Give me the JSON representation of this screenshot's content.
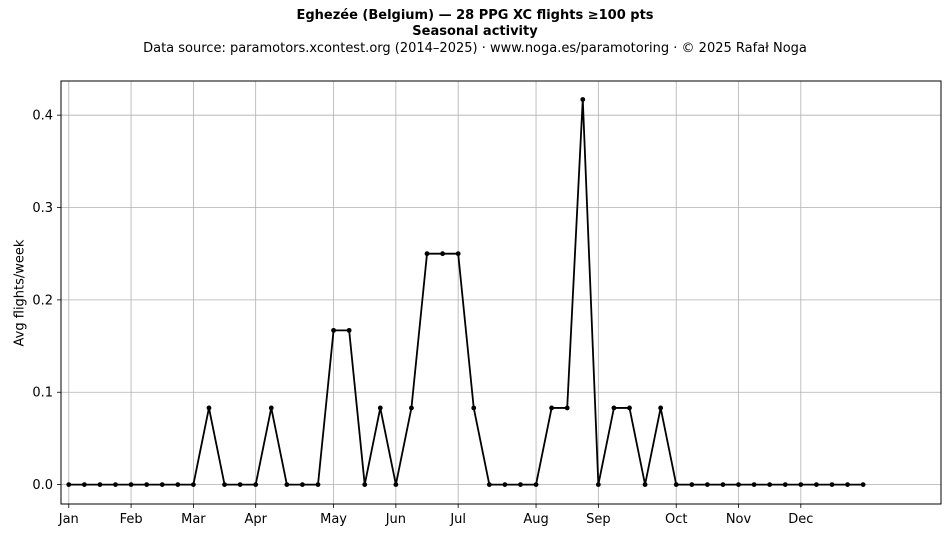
{
  "chart_data": {
    "type": "line",
    "title": "Eghezée (Belgium)  —  28 PPG XC flights ≥100 pts",
    "subtitle": "Seasonal activity",
    "source_note": "Data source: paramotors.xcontest.org (2014–2025)  ·  www.noga.es/paramotoring  ·  © 2025 Rafał Noga",
    "xlabel": "",
    "ylabel": "Avg flights/week",
    "xlim": [
      -0.5,
      56.0
    ],
    "ylim": [
      -0.021,
      0.437
    ],
    "grid": true,
    "month_ticks": [
      {
        "label": "Jan",
        "week": 0
      },
      {
        "label": "Feb",
        "week": 4
      },
      {
        "label": "Mar",
        "week": 8
      },
      {
        "label": "Apr",
        "week": 12
      },
      {
        "label": "May",
        "week": 17
      },
      {
        "label": "Jun",
        "week": 21
      },
      {
        "label": "Jul",
        "week": 25
      },
      {
        "label": "Aug",
        "week": 30
      },
      {
        "label": "Sep",
        "week": 34
      },
      {
        "label": "Oct",
        "week": 39
      },
      {
        "label": "Nov",
        "week": 43
      },
      {
        "label": "Dec",
        "week": 47
      }
    ],
    "y_ticks": [
      0.0,
      0.1,
      0.2,
      0.3,
      0.4
    ],
    "y_tick_labels": [
      "0.0",
      "0.1",
      "0.2",
      "0.3",
      "0.4"
    ],
    "series": [
      {
        "color": "#000000",
        "x": [
          0,
          1,
          2,
          3,
          4,
          5,
          6,
          7,
          8,
          9,
          10,
          11,
          12,
          13,
          14,
          15,
          16,
          17,
          18,
          19,
          20,
          21,
          22,
          23,
          24,
          25,
          26,
          27,
          28,
          29,
          30,
          31,
          32,
          33,
          34,
          35,
          36,
          37,
          38,
          39,
          40,
          41,
          42,
          43,
          44,
          45,
          46,
          47,
          48,
          49,
          50,
          51
        ],
        "values": [
          0,
          0,
          0,
          0,
          0,
          0,
          0,
          0,
          0,
          0.083,
          0,
          0,
          0,
          0.083,
          0,
          0,
          0,
          0.167,
          0.167,
          0,
          0.083,
          0,
          0.083,
          0.25,
          0.25,
          0.25,
          0.083,
          0,
          0,
          0,
          0,
          0.083,
          0.083,
          0.417,
          0,
          0.083,
          0.083,
          0,
          0.083,
          0,
          0,
          0,
          0,
          0,
          0,
          0,
          0,
          0,
          0,
          0,
          0,
          0
        ]
      }
    ]
  }
}
